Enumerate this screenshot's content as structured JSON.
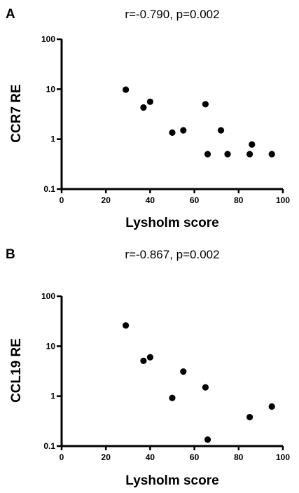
{
  "chart_data": [
    {
      "type": "scatter",
      "panel_label": "A",
      "title": "r=-0.790, p=0.002",
      "xlabel": "Lysholm score",
      "ylabel": "CCR7 RE",
      "xlim": [
        0,
        100
      ],
      "ylim": [
        0.1,
        100
      ],
      "yscale": "log",
      "grid": false,
      "x_ticks": [
        "0",
        "20",
        "40",
        "60",
        "80",
        "100"
      ],
      "y_ticks": [
        "0.1",
        "1",
        "10",
        "100"
      ],
      "series": [
        {
          "x": [
            29,
            37,
            40,
            50,
            55,
            65,
            66,
            72,
            75,
            85,
            86,
            95
          ],
          "y": [
            9.8,
            4.3,
            5.6,
            1.35,
            1.5,
            5.0,
            0.5,
            1.5,
            0.5,
            0.5,
            0.78,
            0.5
          ]
        }
      ]
    },
    {
      "type": "scatter",
      "panel_label": "B",
      "title": "r=-0.867, p=0.002",
      "xlabel": "Lysholm score",
      "ylabel": "CCL19 RE",
      "xlim": [
        0,
        100
      ],
      "ylim": [
        0.1,
        100
      ],
      "yscale": "log",
      "grid": false,
      "x_ticks": [
        "0",
        "20",
        "40",
        "60",
        "80",
        "100"
      ],
      "y_ticks": [
        "0.1",
        "1",
        "10",
        "100"
      ],
      "series": [
        {
          "x": [
            29,
            37,
            40,
            50,
            55,
            65,
            66,
            85,
            95
          ],
          "y": [
            26,
            5.1,
            6.0,
            0.92,
            3.1,
            1.5,
            0.135,
            0.38,
            0.62
          ]
        }
      ]
    }
  ]
}
